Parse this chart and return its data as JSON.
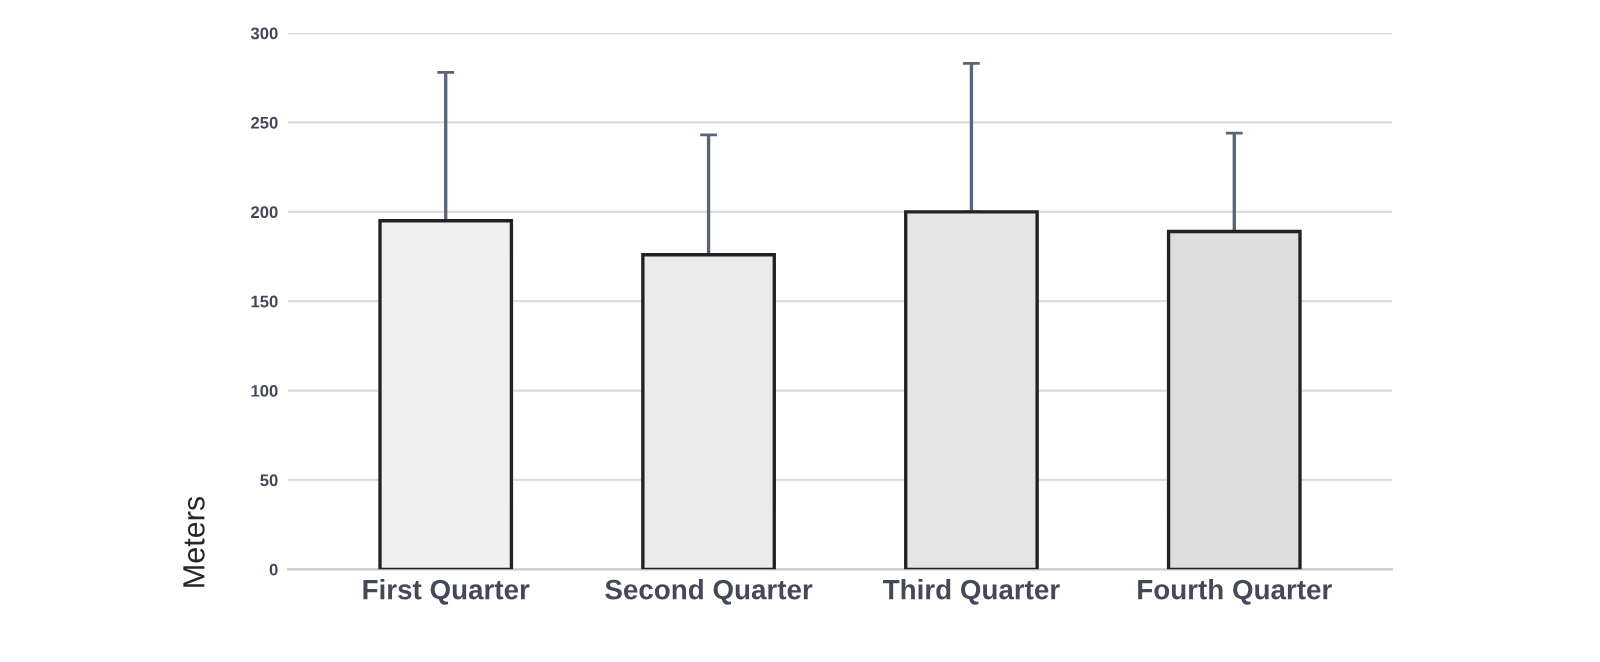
{
  "chart_data": {
    "type": "bar",
    "ylabel": "Meters",
    "categories": [
      "First Quarter",
      "Second Quarter",
      "Third Quarter",
      "Fourth Quarter"
    ],
    "values": [
      195,
      176,
      200,
      189
    ],
    "errors": [
      [
        195,
        278
      ],
      [
        176,
        243
      ],
      [
        200,
        283
      ],
      [
        189,
        244
      ]
    ],
    "colors": [
      "#f0f0f0",
      "#ebebeb",
      "#e5e5e5",
      "#dedede"
    ],
    "ylim": [
      0,
      300
    ],
    "yticks": [
      0,
      50,
      100,
      150,
      200,
      250,
      300
    ],
    "grid": "y"
  }
}
